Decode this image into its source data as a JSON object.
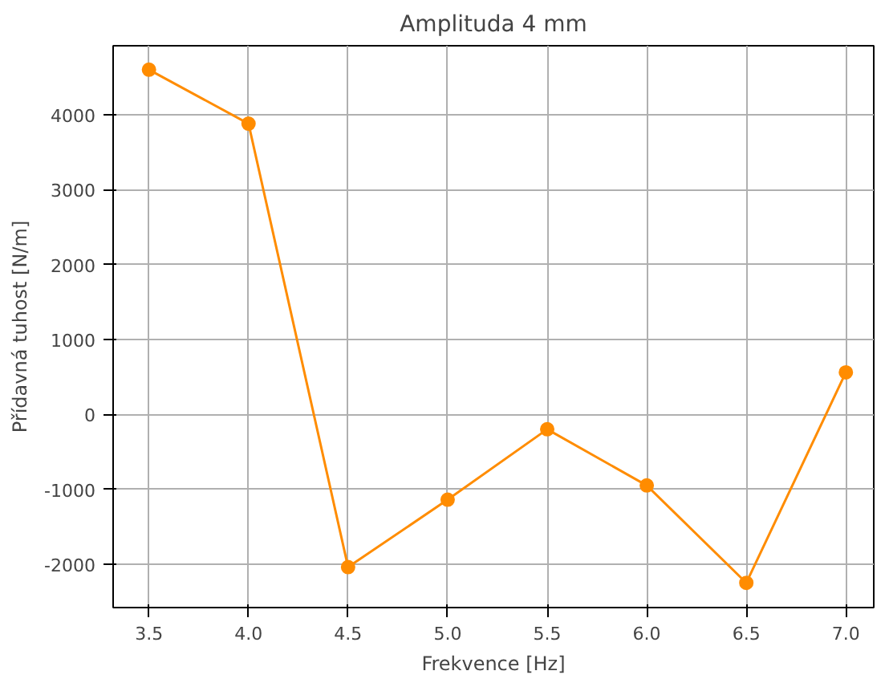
{
  "chart_data": {
    "type": "line",
    "title": "Amplituda 4 mm",
    "xlabel": "Frekvence [Hz]",
    "ylabel": "Přídavná tuhost [N/m]",
    "x": [
      3.5,
      4.0,
      4.5,
      5.0,
      5.5,
      6.0,
      6.5,
      7.0
    ],
    "series": [
      {
        "color": "#ff8c00",
        "values": [
          4600,
          3880,
          -2040,
          -1140,
          -200,
          -950,
          -2250,
          560
        ]
      }
    ],
    "xlim": [
      3.32,
      7.14
    ],
    "ylim": [
      -2580,
      4920
    ],
    "xticks": [
      {
        "value": 3.5,
        "label": "3.5"
      },
      {
        "value": 4.0,
        "label": "4.0"
      },
      {
        "value": 4.5,
        "label": "4.5"
      },
      {
        "value": 5.0,
        "label": "5.0"
      },
      {
        "value": 5.5,
        "label": "5.5"
      },
      {
        "value": 6.0,
        "label": "6.0"
      },
      {
        "value": 6.5,
        "label": "6.5"
      },
      {
        "value": 7.0,
        "label": "7.0"
      }
    ],
    "yticks": [
      -2000,
      -1000,
      0,
      1000,
      2000,
      3000,
      4000
    ],
    "grid": true,
    "marker": "circle",
    "line_style": "solid"
  }
}
